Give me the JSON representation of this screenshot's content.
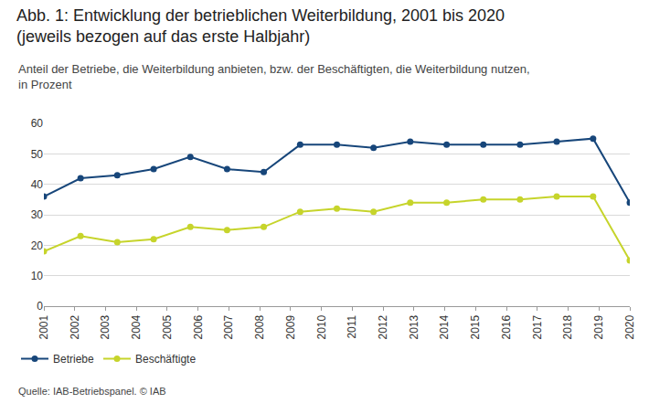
{
  "chart_data": {
    "type": "line",
    "title": [
      "Abb. 1: Entwicklung der betrieblichen Weiterbildung, 2001 bis 2020",
      "(jeweils bezogen auf das erste Halbjahr)"
    ],
    "subtitle": [
      "Anteil der Betriebe, die Weiterbildung anbieten, bzw. der Beschäftigten, die Weiterbildung nutzen,",
      "in Prozent"
    ],
    "source": "Quelle: IAB-Betriebspanel. © IAB",
    "x": [
      2001,
      2002.19,
      2003.38,
      2004.56,
      2005.75,
      2006.94,
      2008.13,
      2009.31,
      2010.5,
      2011.69,
      2012.88,
      2014.06,
      2015.25,
      2016.44,
      2017.63,
      2018.81,
      2020
    ],
    "series": [
      {
        "name": "Betriebe",
        "color": "#17467a",
        "values": [
          36,
          42,
          43,
          45,
          49,
          45,
          44,
          53,
          53,
          52,
          54,
          53,
          53,
          53,
          54,
          55,
          34
        ]
      },
      {
        "name": "Beschäftigte",
        "color": "#c6d42b",
        "values": [
          18,
          23,
          21,
          22,
          26,
          25,
          26,
          31,
          32,
          31,
          34,
          34,
          35,
          35,
          36,
          36,
          15
        ]
      }
    ],
    "xlim": [
      2001,
      2020
    ],
    "xticks": [
      2001,
      2002,
      2003,
      2004,
      2005,
      2006,
      2007,
      2008,
      2009,
      2010,
      2011,
      2012,
      2013,
      2014,
      2015,
      2016,
      2017,
      2018,
      2019,
      2020
    ],
    "ylim": [
      0,
      60
    ],
    "yticks": [
      0,
      10,
      20,
      30,
      40,
      50,
      60
    ],
    "grid": true,
    "legend": "bottom left",
    "marker": "circle"
  }
}
